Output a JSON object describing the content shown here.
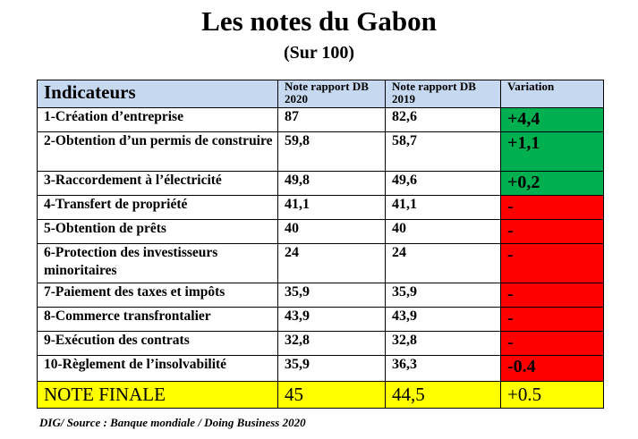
{
  "title": "Les notes du Gabon",
  "subtitle": "(Sur 100)",
  "table": {
    "headers": {
      "indicator": "Indicateurs",
      "note_2020": "Note rapport DB 2020",
      "note_2019": "Note rapport DB 2019",
      "variation": "Variation"
    },
    "rows": [
      {
        "indicator": "1-Création d’entreprise",
        "note_2020": "87",
        "note_2019": "82,6",
        "variation": "+4,4",
        "variation_color": "#00b050"
      },
      {
        "indicator": "2-Obtention d’un permis de construire",
        "note_2020": "59,8",
        "note_2019": "58,7",
        "variation": "+1,1",
        "variation_color": "#00b050"
      },
      {
        "indicator": "3-Raccordement à l’électricité",
        "note_2020": "49,8",
        "note_2019": "49,6",
        "variation": "+0,2",
        "variation_color": "#00b050"
      },
      {
        "indicator": "4-Transfert de propriété",
        "note_2020": "41,1",
        "note_2019": "41,1",
        "variation": "-",
        "variation_color": "#ff0000"
      },
      {
        "indicator": "5-Obtention de prêts",
        "note_2020": "40",
        "note_2019": "40",
        "variation": "-",
        "variation_color": "#ff0000"
      },
      {
        "indicator": "6-Protection des investisseurs minoritaires",
        "note_2020": "24",
        "note_2019": "24",
        "variation": "-",
        "variation_color": "#ff0000"
      },
      {
        "indicator": "7-Paiement des taxes et impôts",
        "note_2020": "35,9",
        "note_2019": "35,9",
        "variation": "-",
        "variation_color": "#ff0000"
      },
      {
        "indicator": "8-Commerce transfrontalier",
        "note_2020": "43,9",
        "note_2019": "43,9",
        "variation": "-",
        "variation_color": "#ff0000"
      },
      {
        "indicator": "9-Exécution des contrats",
        "note_2020": "32,8",
        "note_2019": "32,8",
        "variation": "-",
        "variation_color": "#ff0000"
      },
      {
        "indicator": "10-Règlement de l’insolvabilité",
        "note_2020": "35,9",
        "note_2019": "36,3",
        "variation": "-0.4",
        "variation_color": "#ff0000"
      }
    ],
    "final": {
      "label": "NOTE FINALE",
      "note_2020": "45",
      "note_2019": "44,5",
      "variation": "+0.5",
      "color": "#ffff00"
    },
    "header_color": "#c6d9f0"
  },
  "source": "DIG/ Source : Banque mondiale / Doing Business 2020"
}
